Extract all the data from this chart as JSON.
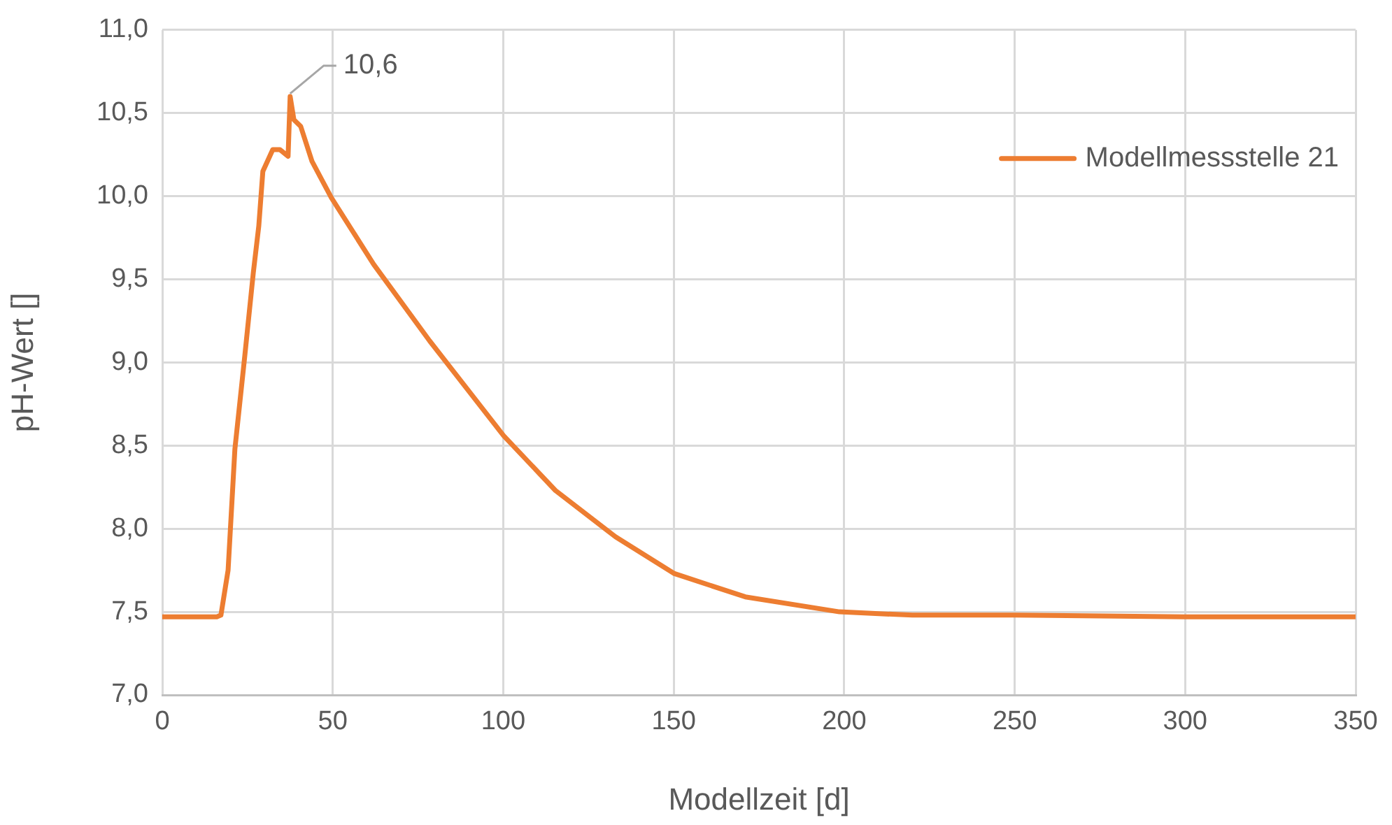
{
  "chart_data": {
    "type": "line",
    "xlabel": "Modellzeit [d]",
    "ylabel": "pH-Wert []",
    "series": [
      {
        "name": "Modellmessstelle 21",
        "color": "#ed7d31",
        "x": [
          0,
          16,
          17.2,
          19.3,
          21.3,
          24.2,
          26.7,
          28.3,
          29.5,
          32.4,
          34.5,
          36.9,
          37.5,
          38.6,
          40.6,
          43.9,
          49.6,
          62,
          78.4,
          100.1,
          115.3,
          133,
          150.2,
          171,
          198.6,
          220,
          250,
          300,
          350
        ],
        "values": [
          7.47,
          7.47,
          7.48,
          7.75,
          8.48,
          9.04,
          9.54,
          9.82,
          10.15,
          10.28,
          10.28,
          10.24,
          10.6,
          10.46,
          10.42,
          10.21,
          9.99,
          9.59,
          9.13,
          8.56,
          8.23,
          7.95,
          7.73,
          7.59,
          7.5,
          7.48,
          7.48,
          7.47,
          7.47
        ]
      }
    ],
    "xlim": [
      0,
      350
    ],
    "xticks": [
      0,
      50,
      100,
      150,
      200,
      250,
      300,
      350
    ],
    "ylim": [
      7,
      11
    ],
    "yticks": [
      {
        "value": 7,
        "label": "7,0"
      },
      {
        "value": 7.5,
        "label": "7,5"
      },
      {
        "value": 8,
        "label": "8,0"
      },
      {
        "value": 8.5,
        "label": "8,5"
      },
      {
        "value": 9,
        "label": "9,0"
      },
      {
        "value": 9.5,
        "label": "9,5"
      },
      {
        "value": 10,
        "label": "10,0"
      },
      {
        "value": 10.5,
        "label": "10,5"
      },
      {
        "value": 11,
        "label": "11,0"
      }
    ],
    "annotations": [
      {
        "text": "10,6",
        "x": 37.5,
        "y": 10.6
      }
    ],
    "grid": true,
    "legend": "top right",
    "marker": "none",
    "line_style": "solid"
  }
}
